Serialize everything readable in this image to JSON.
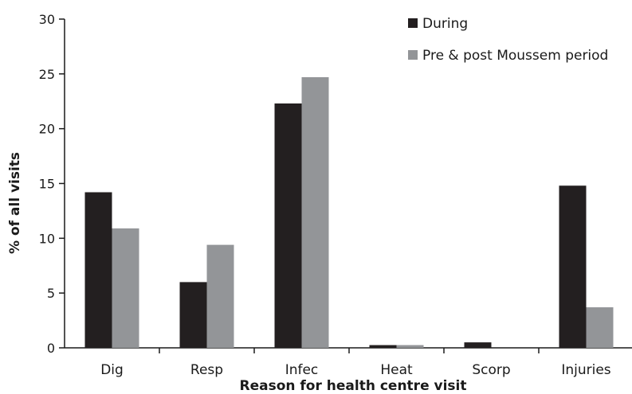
{
  "chart_data": {
    "type": "bar",
    "title": "",
    "xlabel": "Reason for health centre visit",
    "ylabel": "% of all visits",
    "categories": [
      "Dig",
      "Resp",
      "Infec",
      "Heat",
      "Scorp",
      "Injuries"
    ],
    "series": [
      {
        "name": "During",
        "color": "#231f20",
        "values": [
          14.2,
          6.0,
          22.3,
          0.25,
          0.5,
          14.8
        ]
      },
      {
        "name": "Pre & post Moussem period",
        "color": "#939598",
        "values": [
          10.9,
          9.4,
          24.7,
          0.25,
          0,
          3.7
        ]
      }
    ],
    "ylim": [
      0,
      30
    ],
    "yticks": [
      "0",
      "5",
      "10",
      "15",
      "20",
      "25",
      "30"
    ],
    "grid": false,
    "legend_position": "top-right"
  }
}
